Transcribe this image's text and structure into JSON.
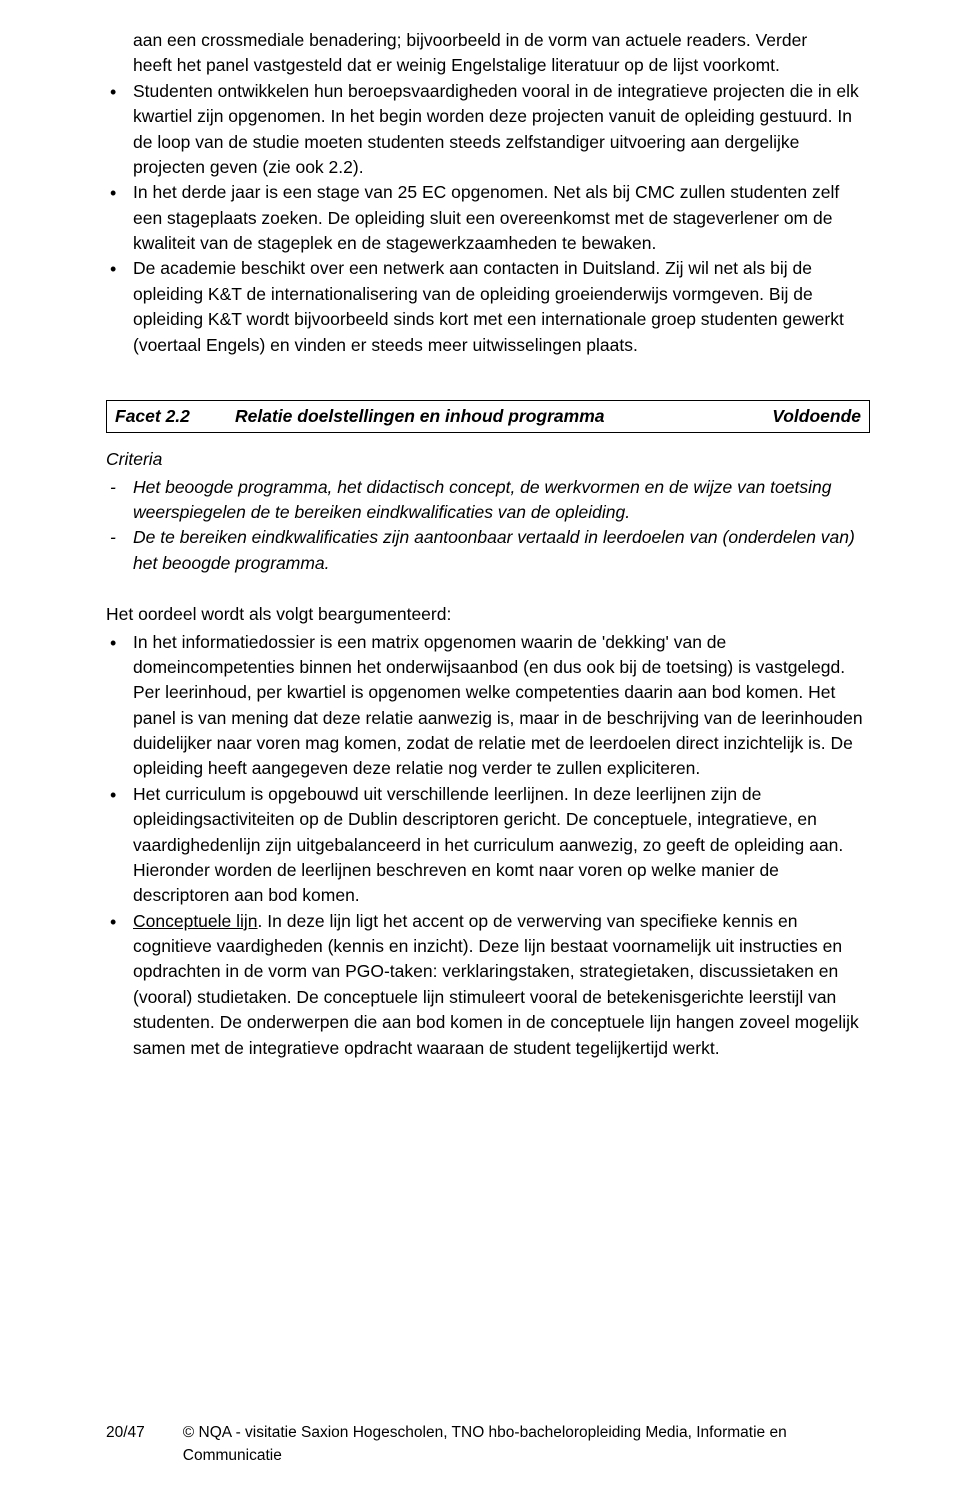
{
  "top": {
    "continued_line1": "aan een crossmediale benadering; bijvoorbeeld in de vorm van actuele readers. Verder",
    "continued_line2": "heeft het panel vastgesteld dat er weinig Engelstalige literatuur op de lijst voorkomt.",
    "bullets": [
      "Studenten ontwikkelen hun beroepsvaardigheden vooral in de integratieve projecten die in elk kwartiel zijn opgenomen. In het begin worden deze projecten vanuit de opleiding gestuurd. In de loop van de studie moeten studenten steeds zelfstandiger uitvoering aan dergelijke projecten geven (zie ook 2.2).",
      "In het derde jaar is een stage van 25 EC opgenomen. Net als bij CMC zullen studenten zelf een stageplaats zoeken. De opleiding sluit een overeenkomst met de stageverlener om de kwaliteit van de stageplek en de stagewerkzaamheden te bewaken.",
      "De academie beschikt over een netwerk aan contacten in Duitsland. Zij wil net als bij de opleiding K&T de internationalisering van de opleiding groeienderwijs vormgeven. Bij de opleiding K&T wordt bijvoorbeeld sinds kort met een internationale groep studenten gewerkt (voertaal Engels) en vinden er steeds meer uitwisselingen plaats."
    ]
  },
  "facet": {
    "label": "Facet 2.2",
    "title": "Relatie doelstellingen en inhoud programma",
    "rating": "Voldoende"
  },
  "criteria": {
    "heading": "Criteria",
    "items": [
      "Het beoogde programma, het didactisch concept, de werkvormen en de wijze van toetsing weerspiegelen de te bereiken eindkwalificaties van de opleiding.",
      "De te bereiken eindkwalificaties zijn aantoonbaar vertaald in leerdoelen van (onderdelen van) het beoogde programma."
    ]
  },
  "judgement": {
    "intro": "Het oordeel wordt als volgt beargumenteerd:",
    "bullets": [
      {
        "text": "In het informatiedossier is een matrix opgenomen waarin de 'dekking' van de domeincompetenties binnen het onderwijsaanbod (en dus ook bij de toetsing) is vastgelegd. Per leerinhoud, per kwartiel is opgenomen welke competenties daarin aan bod komen. Het panel is van mening dat deze relatie aanwezig is, maar in de beschrijving van de leerinhouden duidelijker naar voren mag komen, zodat de relatie met de leerdoelen direct inzichtelijk is. De opleiding heeft aangegeven deze relatie nog verder te zullen expliciteren."
      },
      {
        "text": "Het curriculum is opgebouwd uit verschillende leerlijnen. In deze leerlijnen zijn de opleidingsactiviteiten op de Dublin descriptoren gericht. De conceptuele, integratieve, en vaardighedenlijn zijn uitgebalanceerd in het curriculum aanwezig, zo geeft de opleiding aan. Hieronder worden de leerlijnen beschreven en komt naar voren op welke manier de descriptoren aan bod komen."
      },
      {
        "lead_underlined": "Conceptuele lijn",
        "text_after": ". In deze lijn ligt het accent op de verwerving van specifieke kennis en cognitieve vaardigheden (kennis en inzicht). Deze lijn bestaat voornamelijk uit instructies en opdrachten in de vorm van PGO-taken: verklaringstaken, strategietaken, discussietaken en (vooral) studietaken. De conceptuele lijn stimuleert vooral de betekenisgerichte leerstijl van studenten. De onderwerpen die aan bod komen in de conceptuele lijn hangen zoveel mogelijk samen met de integratieve opdracht waaraan de student tegelijkertijd werkt."
      }
    ]
  },
  "footer": {
    "page": "20/47",
    "text": "© NQA - visitatie Saxion Hogescholen, TNO hbo-bacheloropleiding Media, Informatie en Communicatie"
  }
}
